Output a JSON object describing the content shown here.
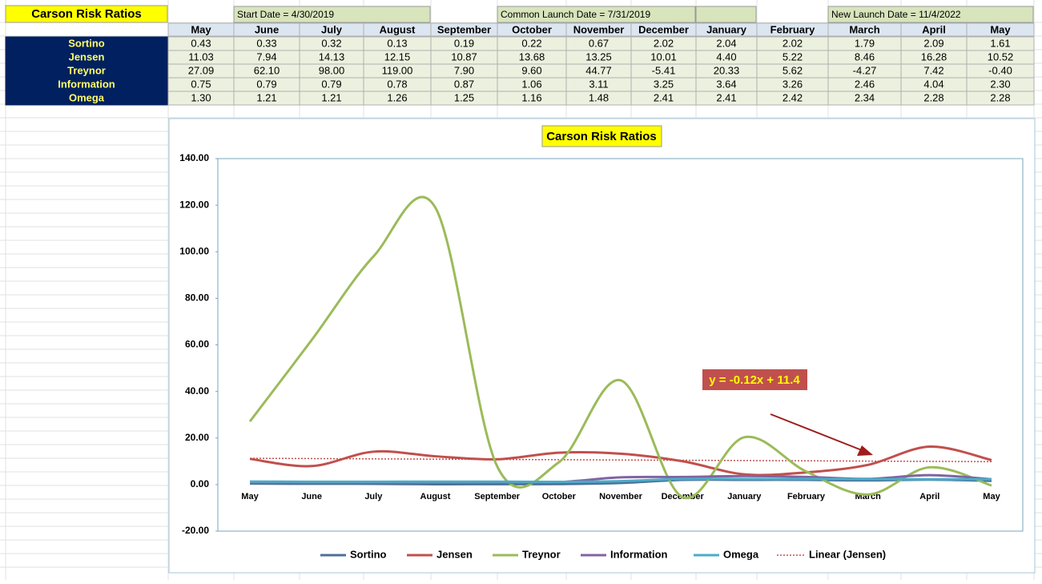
{
  "title": "Carson Risk Ratios",
  "banners": [
    "Start Date = 4/30/2019",
    "Common Launch Date = 7/31/2019",
    "New Launch Date = 11/4/2022"
  ],
  "table": {
    "header": [
      "May",
      "June",
      "July",
      "August",
      "September",
      "October",
      "November",
      "December",
      "January",
      "February",
      "March",
      "April",
      "May"
    ],
    "rows": [
      {
        "label": "Sortino",
        "cells": [
          "0.43",
          "0.33",
          "0.32",
          "0.13",
          "0.19",
          "0.22",
          "0.67",
          "2.02",
          "2.04",
          "2.02",
          "1.79",
          "2.09",
          "1.61"
        ]
      },
      {
        "label": "Jensen",
        "cells": [
          "11.03",
          "7.94",
          "14.13",
          "12.15",
          "10.87",
          "13.68",
          "13.25",
          "10.01",
          "4.40",
          "5.22",
          "8.46",
          "16.28",
          "10.52"
        ]
      },
      {
        "label": "Treynor",
        "cells": [
          "27.09",
          "62.10",
          "98.00",
          "119.00",
          "7.90",
          "9.60",
          "44.77",
          "-5.41",
          "20.33",
          "5.62",
          "-4.27",
          "7.42",
          "-0.40"
        ]
      },
      {
        "label": "Information",
        "cells": [
          "0.75",
          "0.79",
          "0.79",
          "0.78",
          "0.87",
          "1.06",
          "3.11",
          "3.25",
          "3.64",
          "3.26",
          "2.46",
          "4.04",
          "2.30"
        ]
      },
      {
        "label": "Omega",
        "cells": [
          "1.30",
          "1.21",
          "1.21",
          "1.26",
          "1.25",
          "1.16",
          "1.48",
          "2.41",
          "2.41",
          "2.42",
          "2.34",
          "2.28",
          "2.28"
        ]
      }
    ]
  },
  "chart_data": {
    "type": "line",
    "title": "Carson Risk Ratios",
    "categories": [
      "May",
      "June",
      "July",
      "August",
      "September",
      "October",
      "November",
      "December",
      "January",
      "February",
      "March",
      "April",
      "May"
    ],
    "series": [
      {
        "name": "Sortino",
        "color": "#4f6f9a",
        "values": [
          0.43,
          0.33,
          0.32,
          0.13,
          0.19,
          0.22,
          0.67,
          2.02,
          2.04,
          2.02,
          1.79,
          2.09,
          1.61
        ]
      },
      {
        "name": "Jensen",
        "color": "#c0504d",
        "values": [
          11.03,
          7.94,
          14.13,
          12.15,
          10.87,
          13.68,
          13.25,
          10.01,
          4.4,
          5.22,
          8.46,
          16.28,
          10.52
        ]
      },
      {
        "name": "Treynor",
        "color": "#9bbb59",
        "values": [
          27.09,
          62.1,
          98,
          119,
          7.9,
          9.6,
          44.77,
          -5.41,
          20.33,
          5.62,
          -4.27,
          7.42,
          -0.4
        ]
      },
      {
        "name": "Information",
        "color": "#8064a2",
        "values": [
          0.75,
          0.79,
          0.79,
          0.78,
          0.87,
          1.06,
          3.11,
          3.25,
          3.64,
          3.26,
          2.46,
          4.04,
          2.3
        ]
      },
      {
        "name": "Omega",
        "color": "#4bacc6",
        "values": [
          1.3,
          1.21,
          1.21,
          1.26,
          1.25,
          1.16,
          1.48,
          2.41,
          2.41,
          2.42,
          2.34,
          2.28,
          2.28
        ]
      }
    ],
    "trendline": {
      "name": "Linear (Jensen)",
      "color": "#c0504d",
      "slope": -0.12,
      "intercept": 11.4,
      "label": "y = -0.12x + 11.4"
    },
    "ylim": [
      -20,
      140
    ],
    "yticks": [
      {
        "value": -20,
        "label": "-20.00"
      },
      {
        "value": 0,
        "label": "0.00"
      },
      {
        "value": 20,
        "label": "20.00"
      },
      {
        "value": 40,
        "label": "40.00"
      },
      {
        "value": 60,
        "label": "60.00"
      },
      {
        "value": 80,
        "label": "80.00"
      },
      {
        "value": 100,
        "label": "100.00"
      },
      {
        "value": 120,
        "label": "120.00"
      },
      {
        "value": 140,
        "label": "140.00"
      }
    ],
    "legend": "bottom"
  }
}
